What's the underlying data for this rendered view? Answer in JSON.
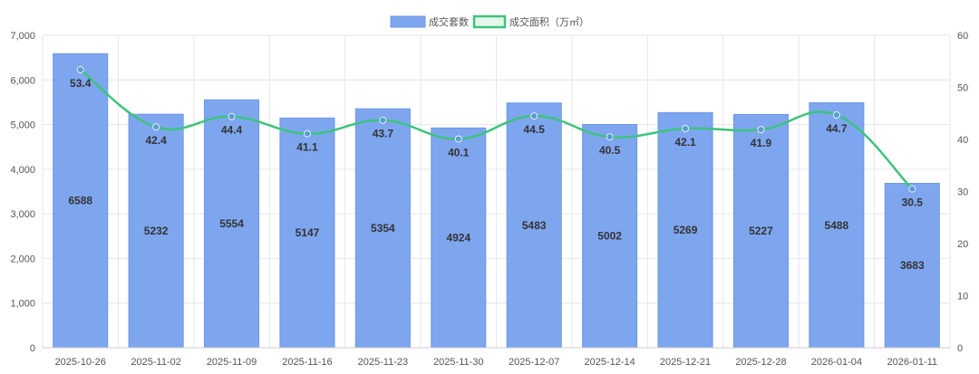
{
  "legend": {
    "bar_label": "成交套数",
    "line_label": "成交面积（万㎡）"
  },
  "colors": {
    "bar_fill": "#7ea6ef",
    "bar_stroke": "#6d97e6",
    "line": "#3cc47c",
    "marker": "#5b9bd5",
    "grid": "#e6e6e6"
  },
  "chart_data": {
    "type": "bar",
    "categories": [
      "2025-10-26",
      "2025-11-02",
      "2025-11-09",
      "2025-11-16",
      "2025-11-23",
      "2025-11-30",
      "2025-12-07",
      "2025-12-14",
      "2025-12-21",
      "2025-12-28",
      "2026-01-04",
      "2026-01-11"
    ],
    "series": [
      {
        "name": "成交套数",
        "type": "bar",
        "axis": "left",
        "values": [
          6588,
          5232,
          5554,
          5147,
          5354,
          4924,
          5483,
          5002,
          5269,
          5227,
          5488,
          3683
        ]
      },
      {
        "name": "成交面积（万㎡）",
        "type": "line",
        "axis": "right",
        "values": [
          53.4,
          42.4,
          44.4,
          41.1,
          43.7,
          40.1,
          44.5,
          40.5,
          42.1,
          41.9,
          44.7,
          30.5
        ]
      }
    ],
    "ylim_left": [
      0,
      7000
    ],
    "yticks_left": [
      "0",
      "1,000",
      "2,000",
      "3,000",
      "4,000",
      "5,000",
      "6,000",
      "7,000"
    ],
    "ylim_right": [
      0,
      60
    ],
    "yticks_right": [
      "0",
      "10",
      "20",
      "30",
      "40",
      "50",
      "60"
    ],
    "grid": true,
    "legend_position": "top-center"
  }
}
